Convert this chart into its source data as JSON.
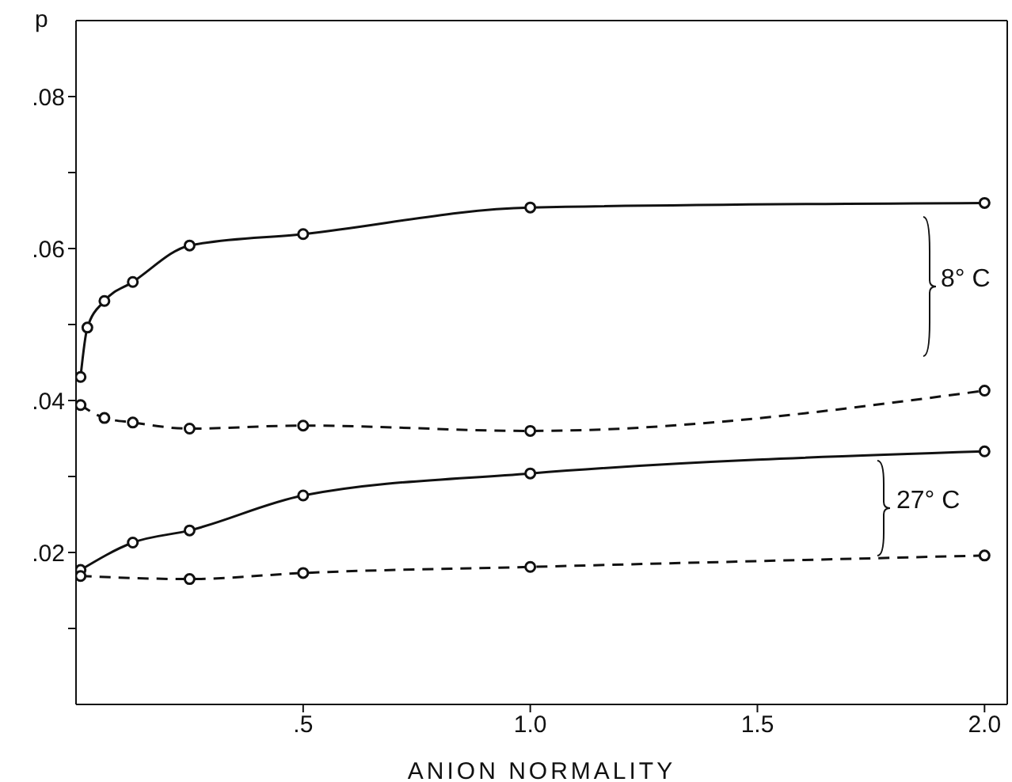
{
  "chart_data": {
    "type": "line",
    "xlabel": "ANION NORMALITY",
    "ylabel": "p",
    "xlim": [
      0,
      2.05
    ],
    "ylim": [
      0,
      0.09
    ],
    "xticks": [
      {
        "value": 0.5,
        "label": ".5"
      },
      {
        "value": 1,
        "label": "1.0"
      },
      {
        "value": 1.5,
        "label": "1.5"
      },
      {
        "value": 2,
        "label": "2.0"
      }
    ],
    "yticks": [
      {
        "value": 0.01,
        "label": null
      },
      {
        "value": 0.02,
        "label": ".02"
      },
      {
        "value": 0.03,
        "label": null
      },
      {
        "value": 0.04,
        "label": ".04"
      },
      {
        "value": 0.05,
        "label": null
      },
      {
        "value": 0.06,
        "label": ".06"
      },
      {
        "value": 0.07,
        "label": null
      },
      {
        "value": 0.08,
        "label": ".08"
      }
    ],
    "marker": "circle",
    "series": [
      {
        "color": "#111111",
        "line_style": "solid",
        "x": [
          0.01,
          0.025,
          0.0625,
          0.125,
          0.25,
          0.5,
          1,
          2
        ],
        "values": [
          0.0431,
          0.0496,
          0.0531,
          0.0556,
          0.0604,
          0.0619,
          0.0654,
          0.066
        ]
      },
      {
        "color": "#111111",
        "line_style": "dashed",
        "x": [
          0.01,
          0.0625,
          0.125,
          0.25,
          0.5,
          1,
          2
        ],
        "values": [
          0.0394,
          0.0377,
          0.0371,
          0.0363,
          0.0367,
          0.036,
          0.0413
        ]
      },
      {
        "color": "#111111",
        "line_style": "solid",
        "x": [
          0.01,
          0.125,
          0.25,
          0.5,
          1,
          2
        ],
        "values": [
          0.0177,
          0.0213,
          0.0229,
          0.0275,
          0.0304,
          0.0333
        ]
      },
      {
        "color": "#111111",
        "line_style": "dashed",
        "x": [
          0.01,
          0.25,
          0.5,
          1,
          2
        ],
        "values": [
          0.0169,
          0.0165,
          0.0173,
          0.0181,
          0.0196
        ]
      }
    ],
    "annotations": [
      "8° C",
      "27° C"
    ]
  }
}
